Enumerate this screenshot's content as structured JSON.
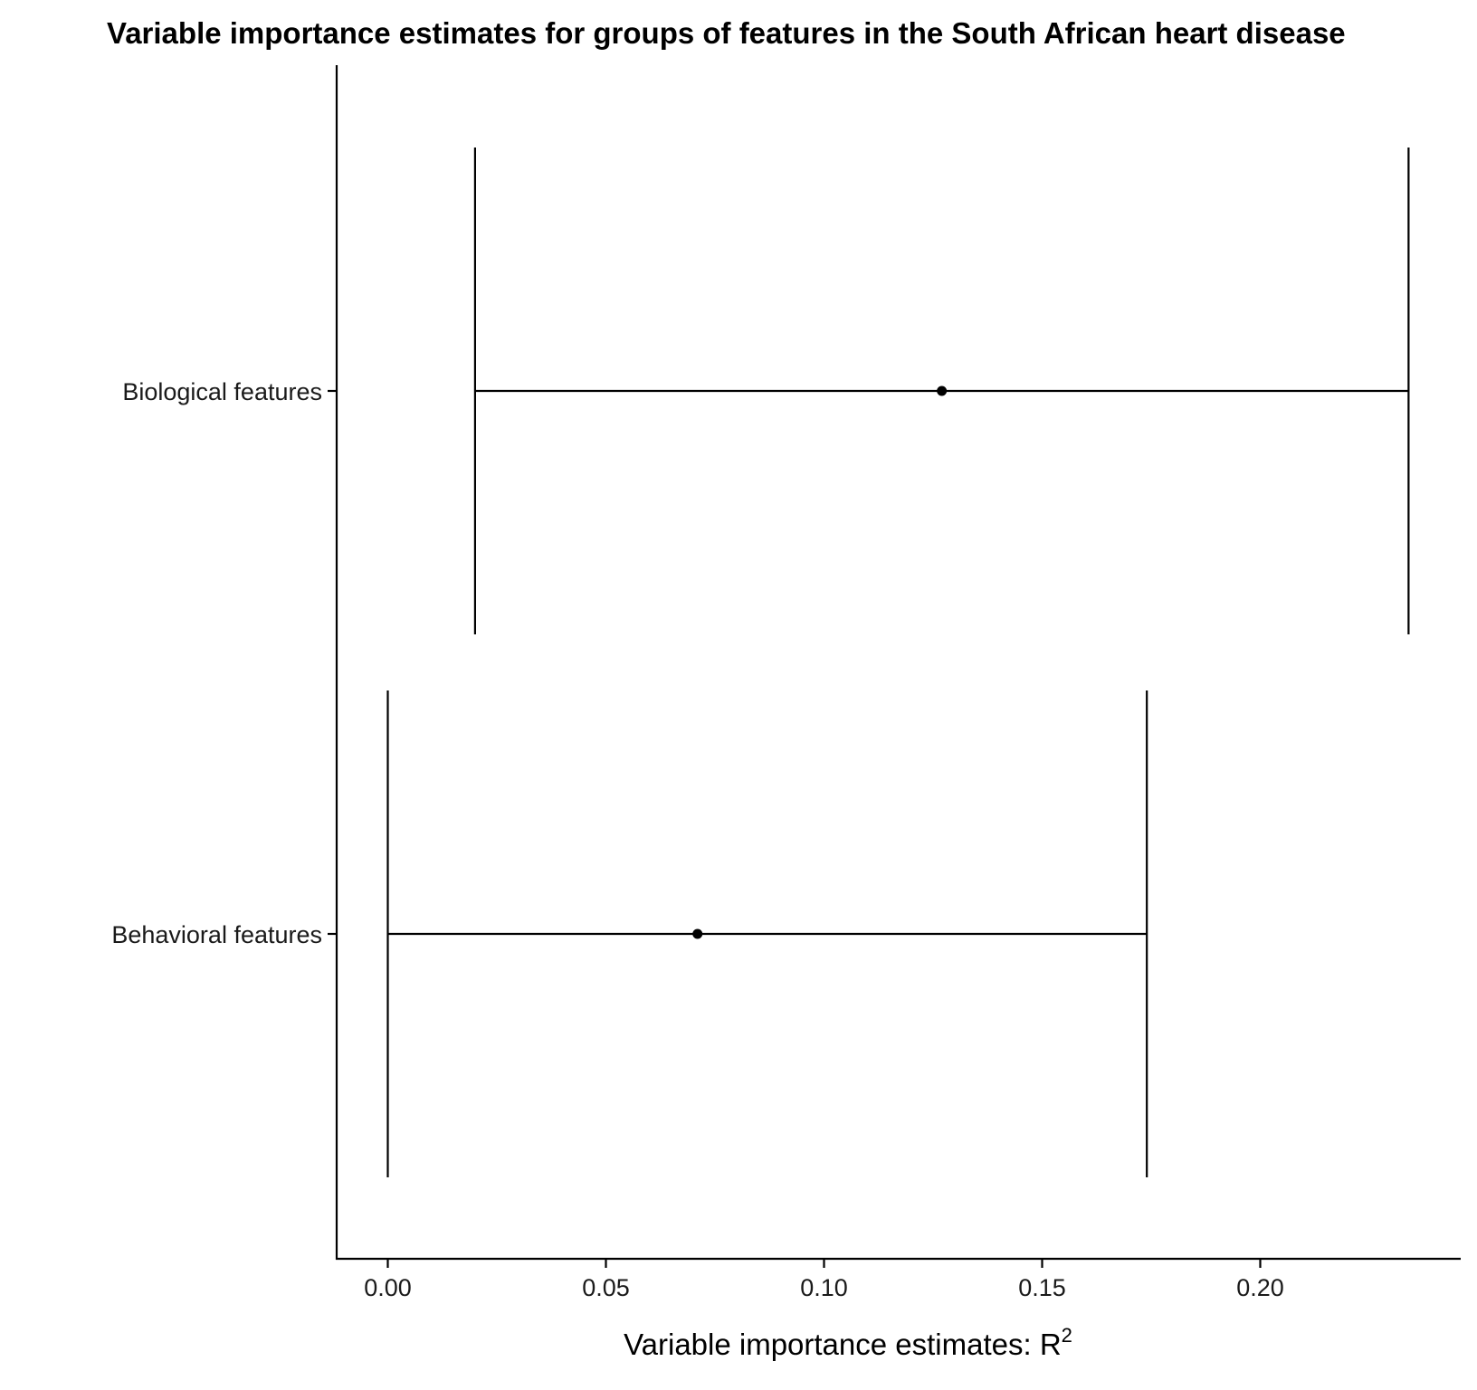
{
  "chart_data": {
    "type": "errorbar",
    "title": "Variable importance estimates for groups of features in the South African heart disease",
    "xlabel": "Variable importance estimates: R",
    "xlabel_superscript": "2",
    "ylabel": "",
    "xlim": [
      -0.0115,
      0.2435
    ],
    "x_ticks": [
      0.0,
      0.05,
      0.1,
      0.15,
      0.2
    ],
    "x_tick_labels": [
      "0.00",
      "0.05",
      "0.10",
      "0.15",
      "0.20"
    ],
    "categories": [
      "Biological features",
      "Behavioral features"
    ],
    "series": [
      {
        "points": [
          {
            "category": "Biological features",
            "estimate": 0.127,
            "lower": 0.02,
            "upper": 0.234
          },
          {
            "category": "Behavioral features",
            "estimate": 0.071,
            "lower": 0.0,
            "upper": 0.174
          }
        ]
      }
    ],
    "grid": false,
    "legend": "none"
  }
}
